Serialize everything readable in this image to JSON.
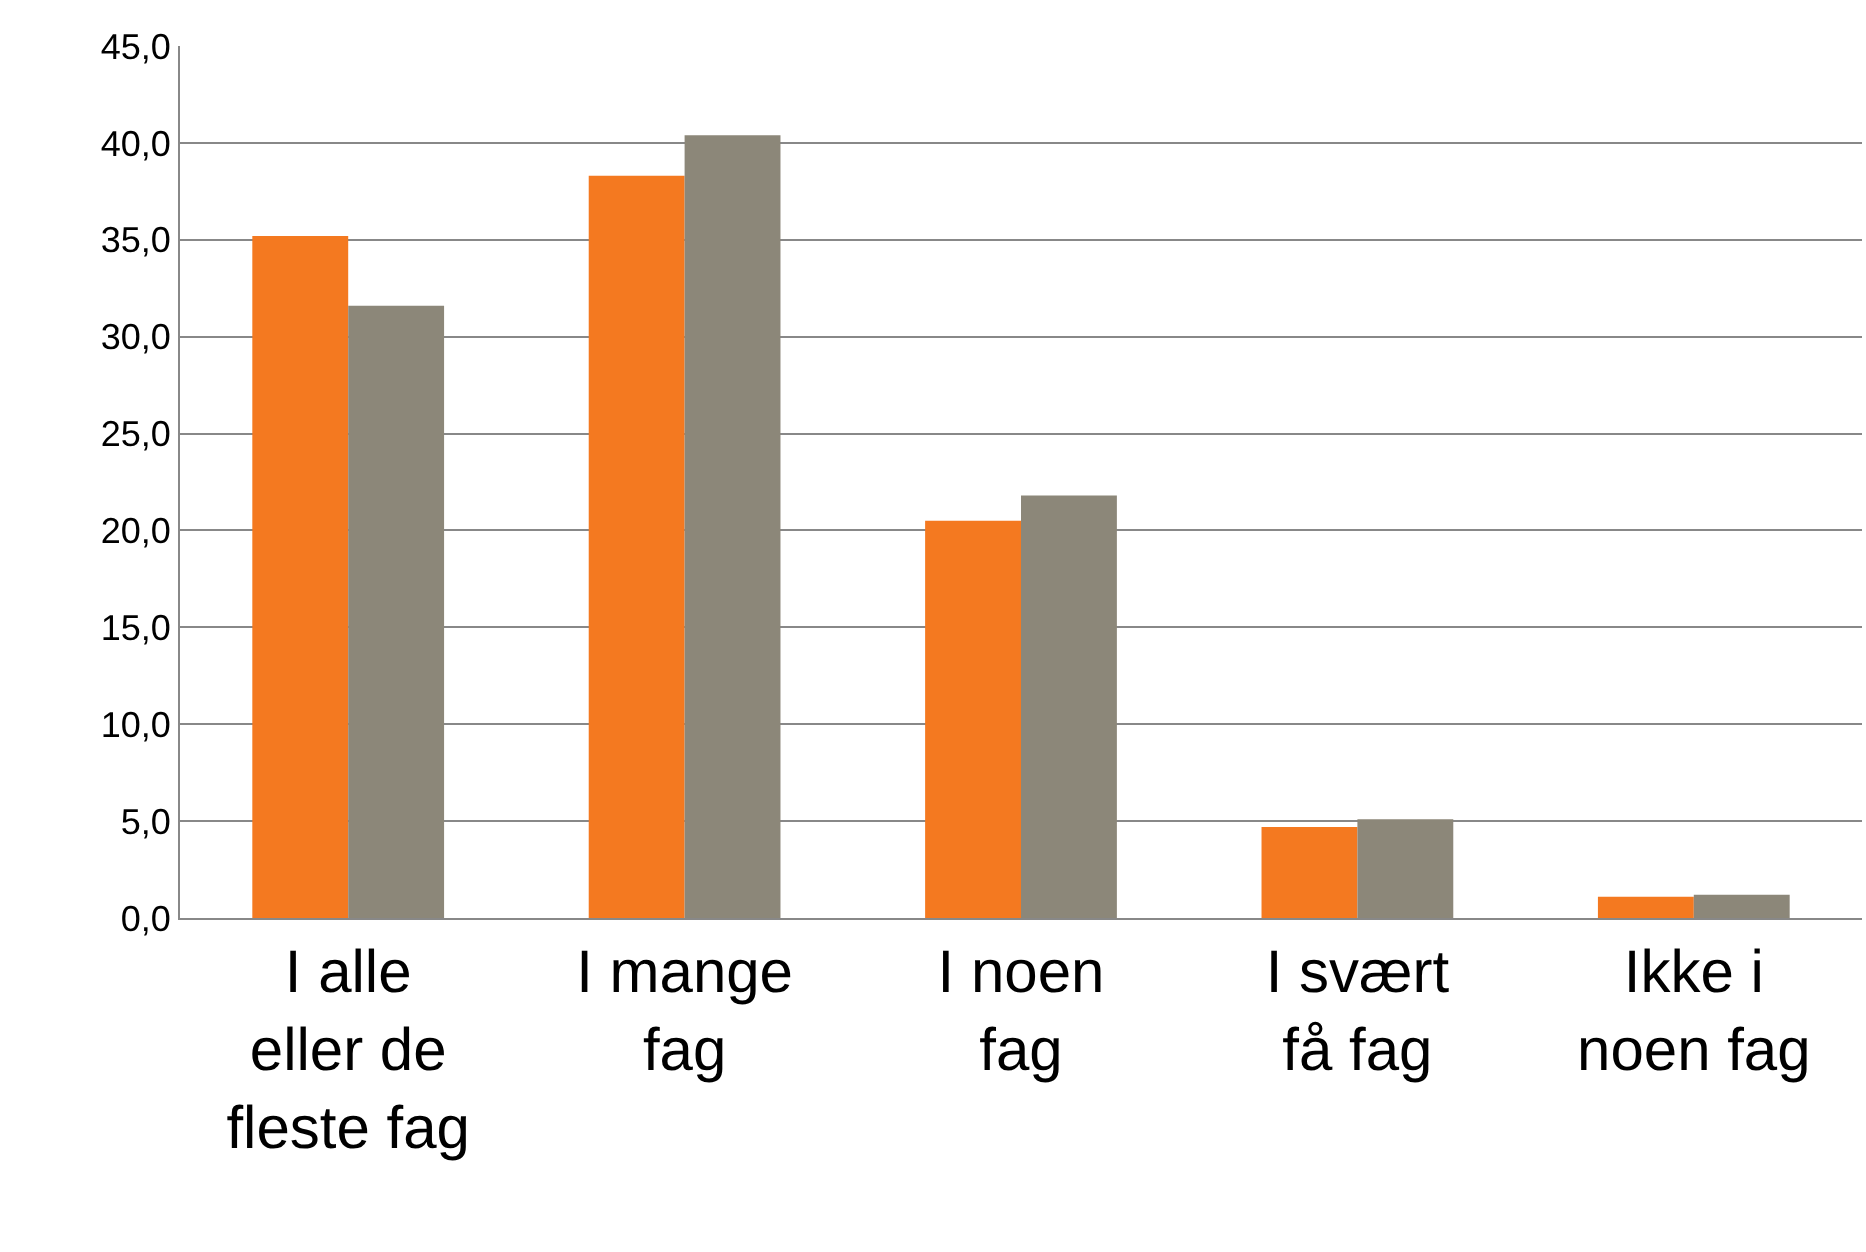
{
  "chart_data": {
    "type": "bar",
    "categories": [
      "I alle eller de fleste fag",
      "I mange fag",
      "I noen fag",
      "I svært få fag",
      "Ikke i noen fag"
    ],
    "series": [
      {
        "color": "#f47920",
        "values": [
          35.2,
          38.3,
          20.5,
          4.7,
          1.1
        ]
      },
      {
        "color": "#8c8779",
        "values": [
          31.6,
          40.4,
          21.8,
          5.1,
          1.2
        ]
      }
    ],
    "ylim": [
      0,
      45
    ],
    "yticks": [
      {
        "value": 0,
        "label": "0,0"
      },
      {
        "value": 5,
        "label": "5,0"
      },
      {
        "value": 10,
        "label": "10,0"
      },
      {
        "value": 15,
        "label": "15,0"
      },
      {
        "value": 20,
        "label": "20,0"
      },
      {
        "value": 25,
        "label": "25,0"
      },
      {
        "value": 30,
        "label": "30,0"
      },
      {
        "value": 35,
        "label": "35,0"
      },
      {
        "value": 40,
        "label": "40,0"
      },
      {
        "value": 45,
        "label": "45,0"
      }
    ],
    "grid": "y"
  }
}
